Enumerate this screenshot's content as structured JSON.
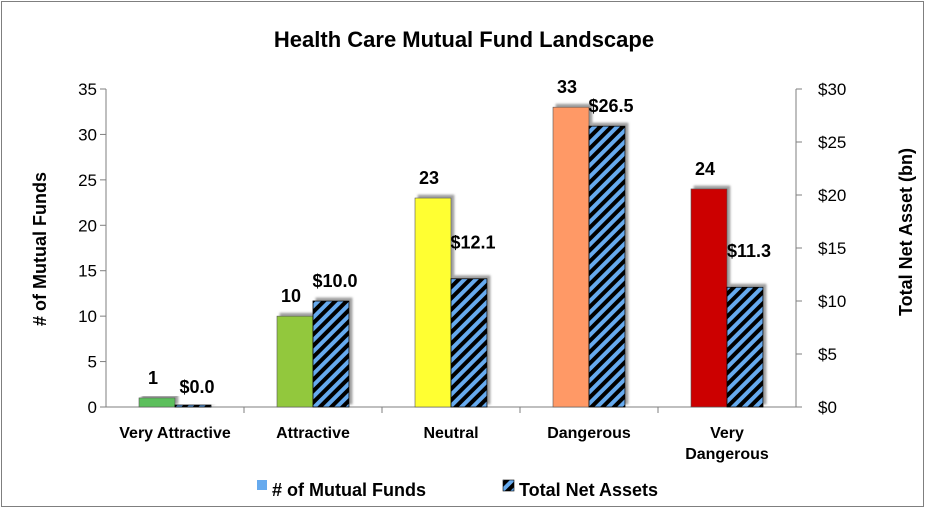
{
  "chart_data": {
    "type": "bar",
    "title": "Health Care Mutual Fund Landscape",
    "categories": [
      [
        "Very Attractive"
      ],
      [
        "Attractive"
      ],
      [
        "Neutral"
      ],
      [
        "Dangerous"
      ],
      [
        "Very",
        "Dangerous"
      ]
    ],
    "series": [
      {
        "name": "# of Mutual Funds",
        "axis": "left",
        "values": [
          1,
          10,
          23,
          33,
          24
        ],
        "labels": [
          "1",
          "10",
          "23",
          "33",
          "24"
        ],
        "colors": [
          "#5cbf5c",
          "#92c83e",
          "#ffff33",
          "#ff9966",
          "#cc0000"
        ],
        "legend_color": "#66aaee"
      },
      {
        "name": "Total Net Assets",
        "axis": "right",
        "values": [
          0.0,
          10.0,
          12.1,
          26.5,
          11.3
        ],
        "labels": [
          "$0.0",
          "$10.0",
          "$12.1",
          "$26.5",
          "$11.3"
        ],
        "fill": "hatched",
        "colors": [
          "#66aaee",
          "#000000"
        ]
      }
    ],
    "y_left": {
      "label": "# of Mutual Funds",
      "ylim": [
        0,
        35
      ],
      "ticks": [
        "0",
        "5",
        "10",
        "15",
        "20",
        "25",
        "30",
        "35"
      ]
    },
    "y_right": {
      "label": "Total Net Asset (bn)",
      "ylim": [
        0,
        30
      ],
      "ticks": [
        "$0",
        "$5",
        "$10",
        "$15",
        "$20",
        "$25",
        "$30"
      ]
    },
    "grid": false,
    "legend_position": "bottom"
  }
}
